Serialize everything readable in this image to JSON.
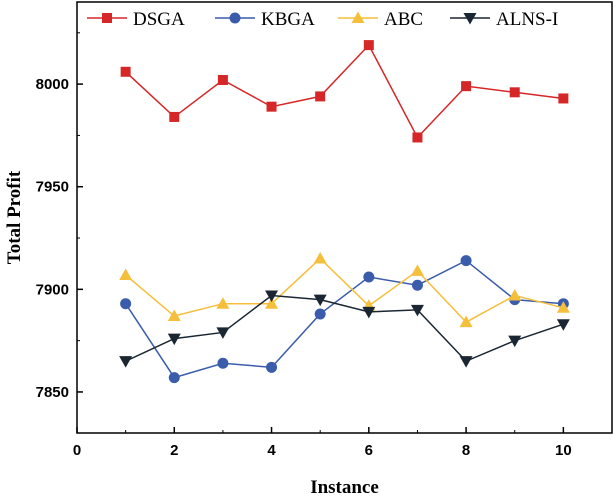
{
  "chart_data": {
    "type": "line",
    "title": "",
    "xlabel": "Instance",
    "ylabel": "Total Profit",
    "x": [
      1,
      2,
      3,
      4,
      5,
      6,
      7,
      8,
      9,
      10
    ],
    "xlim": [
      0,
      11
    ],
    "ylim": [
      7830,
      8040
    ],
    "xticks": [
      0,
      2,
      4,
      6,
      8,
      10
    ],
    "yticks": [
      7850,
      7900,
      7950,
      8000
    ],
    "grid": false,
    "legend_position": "top",
    "series": [
      {
        "name": "DSGA",
        "color": "#d62728",
        "marker": "square",
        "values": [
          8006,
          7984,
          8002,
          7989,
          7994,
          8019,
          7974,
          7999,
          7996,
          7993
        ]
      },
      {
        "name": "KBGA",
        "color": "#3a5cab",
        "marker": "circle",
        "values": [
          7893,
          7857,
          7864,
          7862,
          7888,
          7906,
          7902,
          7914,
          7895,
          7893
        ]
      },
      {
        "name": "ABC",
        "color": "#f5bf3c",
        "marker": "triangle-up",
        "values": [
          7907,
          7887,
          7893,
          7893,
          7915,
          7892,
          7909,
          7884,
          7897,
          7891
        ]
      },
      {
        "name": "ALNS-I",
        "color": "#1a2733",
        "marker": "triangle-down",
        "values": [
          7865,
          7876,
          7879,
          7897,
          7895,
          7889,
          7890,
          7865,
          7875,
          7883
        ]
      }
    ]
  }
}
